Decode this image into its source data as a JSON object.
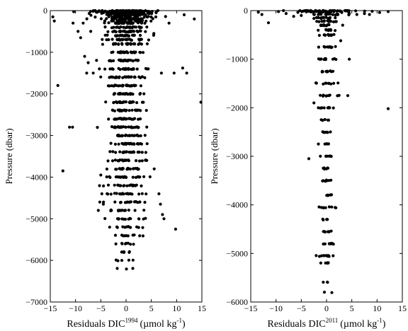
{
  "chart_data": [
    {
      "type": "scatter",
      "xlabel": "Residuals DIC",
      "xlabel_superscript": "1994",
      "xlabel_units": "(µmol kg",
      "xlabel_units_sup": "-1",
      "xlabel_units_close": ")",
      "ylabel": "Pressure (dbar)",
      "xlim": [
        -15,
        15
      ],
      "ylim": [
        -7000,
        0
      ],
      "xticks": [
        -15,
        -10,
        -5,
        0,
        5,
        10,
        15
      ],
      "yticks": [
        0,
        -1000,
        -2000,
        -3000,
        -4000,
        -5000,
        -6000,
        -7000
      ],
      "grid": false,
      "marker_color": "#000000",
      "scatter_generator": {
        "seed": 1994,
        "levels": [
          {
            "p": -10,
            "n": 70,
            "sd": 3.0
          },
          {
            "p": -30,
            "n": 60,
            "sd": 3.0
          },
          {
            "p": -60,
            "n": 50,
            "sd": 3.0
          },
          {
            "p": -100,
            "n": 45,
            "sd": 2.6
          },
          {
            "p": -150,
            "n": 40,
            "sd": 2.5
          },
          {
            "p": -200,
            "n": 35,
            "sd": 2.4
          },
          {
            "p": -250,
            "n": 32,
            "sd": 2.2
          },
          {
            "p": -300,
            "n": 30,
            "sd": 2.0
          },
          {
            "p": -400,
            "n": 30,
            "sd": 2.0
          },
          {
            "p": -500,
            "n": 30,
            "sd": 2.0
          },
          {
            "p": -600,
            "n": 28,
            "sd": 1.9
          },
          {
            "p": -700,
            "n": 28,
            "sd": 1.9
          },
          {
            "p": -800,
            "n": 28,
            "sd": 1.9
          },
          {
            "p": -1000,
            "n": 28,
            "sd": 1.8
          },
          {
            "p": -1200,
            "n": 28,
            "sd": 1.8
          },
          {
            "p": -1400,
            "n": 28,
            "sd": 1.8
          },
          {
            "p": -1600,
            "n": 28,
            "sd": 1.8
          },
          {
            "p": -1800,
            "n": 26,
            "sd": 1.7
          },
          {
            "p": -2000,
            "n": 26,
            "sd": 1.7
          },
          {
            "p": -2200,
            "n": 26,
            "sd": 1.7
          },
          {
            "p": -2400,
            "n": 26,
            "sd": 1.7
          },
          {
            "p": -2600,
            "n": 26,
            "sd": 1.7
          },
          {
            "p": -2800,
            "n": 26,
            "sd": 1.7
          },
          {
            "p": -3000,
            "n": 26,
            "sd": 1.8
          },
          {
            "p": -3200,
            "n": 26,
            "sd": 1.8
          },
          {
            "p": -3400,
            "n": 24,
            "sd": 1.8
          },
          {
            "p": -3600,
            "n": 24,
            "sd": 1.9
          },
          {
            "p": -3800,
            "n": 24,
            "sd": 1.9
          },
          {
            "p": -4000,
            "n": 22,
            "sd": 1.9
          },
          {
            "p": -4200,
            "n": 22,
            "sd": 2.0
          },
          {
            "p": -4400,
            "n": 20,
            "sd": 2.0
          },
          {
            "p": -4600,
            "n": 18,
            "sd": 2.0
          },
          {
            "p": -4800,
            "n": 16,
            "sd": 1.9
          },
          {
            "p": -5000,
            "n": 14,
            "sd": 1.7
          },
          {
            "p": -5200,
            "n": 12,
            "sd": 1.6
          },
          {
            "p": -5400,
            "n": 10,
            "sd": 1.5
          },
          {
            "p": -5600,
            "n": 8,
            "sd": 1.4
          },
          {
            "p": -5800,
            "n": 6,
            "sd": 1.3
          },
          {
            "p": -6000,
            "n": 5,
            "sd": 1.2
          },
          {
            "p": -6200,
            "n": 3,
            "sd": 1.0
          }
        ]
      },
      "outliers": [
        {
          "x": -14.5,
          "y": -150
        },
        {
          "x": -14.2,
          "y": -250
        },
        {
          "x": -13.5,
          "y": -1800
        },
        {
          "x": -12.5,
          "y": -3850
        },
        {
          "x": -11.2,
          "y": -2800
        },
        {
          "x": -10.6,
          "y": -2800
        },
        {
          "x": -10.5,
          "y": -300
        },
        {
          "x": -9.5,
          "y": -500
        },
        {
          "x": -9.0,
          "y": -650
        },
        {
          "x": -8.5,
          "y": -300
        },
        {
          "x": -8.2,
          "y": -1100
        },
        {
          "x": -7.8,
          "y": -1500
        },
        {
          "x": -7.5,
          "y": -1250
        },
        {
          "x": -7.0,
          "y": -500
        },
        {
          "x": -6.5,
          "y": -1500
        },
        {
          "x": -5.5,
          "y": -4800
        },
        {
          "x": -5.2,
          "y": -4600
        },
        {
          "x": -5.0,
          "y": -3950
        },
        {
          "x": -4.8,
          "y": -4400
        },
        {
          "x": -4.5,
          "y": -4650
        },
        {
          "x": 6.5,
          "y": -4400
        },
        {
          "x": 6.8,
          "y": -4650
        },
        {
          "x": 7.2,
          "y": -4900
        },
        {
          "x": 7.5,
          "y": -5000
        },
        {
          "x": 7.0,
          "y": -1500
        },
        {
          "x": 9.5,
          "y": -1500
        },
        {
          "x": 9.8,
          "y": -5250
        },
        {
          "x": 11.2,
          "y": -1380
        },
        {
          "x": 12.0,
          "y": -1500
        },
        {
          "x": 14.8,
          "y": -2200
        },
        {
          "x": 13.5,
          "y": -200
        },
        {
          "x": 11.5,
          "y": -100
        },
        {
          "x": 8.5,
          "y": -300
        },
        {
          "x": 5.5,
          "y": -550
        }
      ]
    },
    {
      "type": "scatter",
      "xlabel": "Residuals DIC",
      "xlabel_superscript": "2011",
      "xlabel_units": "(µmol kg",
      "xlabel_units_sup": "-1",
      "xlabel_units_close": ")",
      "ylabel": "Pressure (dbar)",
      "xlim": [
        -15,
        15
      ],
      "ylim": [
        -6000,
        0
      ],
      "xticks": [
        -15,
        -10,
        -5,
        0,
        5,
        10,
        15
      ],
      "yticks": [
        0,
        -1000,
        -2000,
        -3000,
        -4000,
        -5000,
        -6000
      ],
      "grid": false,
      "marker_color": "#000000",
      "scatter_generator": {
        "seed": 2011,
        "levels": [
          {
            "p": -5,
            "n": 40,
            "sd": 3.5
          },
          {
            "p": -30,
            "n": 25,
            "sd": 2.5
          },
          {
            "p": -80,
            "n": 16,
            "sd": 1.6
          },
          {
            "p": -150,
            "n": 14,
            "sd": 1.4
          },
          {
            "p": -220,
            "n": 12,
            "sd": 1.2
          },
          {
            "p": -300,
            "n": 10,
            "sd": 1.0
          },
          {
            "p": -400,
            "n": 10,
            "sd": 1.0
          },
          {
            "p": -500,
            "n": 10,
            "sd": 1.0
          },
          {
            "p": -750,
            "n": 12,
            "sd": 1.1
          },
          {
            "p": -1000,
            "n": 12,
            "sd": 1.1
          },
          {
            "p": -1250,
            "n": 10,
            "sd": 1.0
          },
          {
            "p": -1500,
            "n": 10,
            "sd": 1.0
          },
          {
            "p": -1750,
            "n": 10,
            "sd": 1.0
          },
          {
            "p": -2000,
            "n": 10,
            "sd": 1.0
          },
          {
            "p": -2250,
            "n": 6,
            "sd": 0.7
          },
          {
            "p": -2500,
            "n": 7,
            "sd": 0.7
          },
          {
            "p": -2750,
            "n": 6,
            "sd": 0.7
          },
          {
            "p": -3000,
            "n": 8,
            "sd": 0.8
          },
          {
            "p": -3250,
            "n": 6,
            "sd": 0.7
          },
          {
            "p": -3500,
            "n": 8,
            "sd": 0.8
          },
          {
            "p": -3800,
            "n": 7,
            "sd": 0.7
          },
          {
            "p": -4050,
            "n": 10,
            "sd": 0.9
          },
          {
            "p": -4300,
            "n": 6,
            "sd": 0.7
          },
          {
            "p": -4550,
            "n": 8,
            "sd": 0.8
          },
          {
            "p": -4800,
            "n": 8,
            "sd": 0.8
          },
          {
            "p": -5050,
            "n": 12,
            "sd": 1.0
          },
          {
            "p": -5200,
            "n": 5,
            "sd": 0.8
          },
          {
            "p": -5600,
            "n": 3,
            "sd": 0.6
          },
          {
            "p": -5800,
            "n": 2,
            "sd": 0.5
          }
        ]
      },
      "outliers": [
        {
          "x": -13.5,
          "y": -30
        },
        {
          "x": -12.8,
          "y": -80
        },
        {
          "x": -11.5,
          "y": -250
        },
        {
          "x": -9.5,
          "y": -20
        },
        {
          "x": -8.0,
          "y": -60
        },
        {
          "x": -6.5,
          "y": -120
        },
        {
          "x": -5.0,
          "y": -100
        },
        {
          "x": 4.5,
          "y": -60
        },
        {
          "x": 6.0,
          "y": -80
        },
        {
          "x": 7.5,
          "y": -60
        },
        {
          "x": 8.5,
          "y": -80
        },
        {
          "x": 10.5,
          "y": -40
        },
        {
          "x": 12.2,
          "y": -20
        },
        {
          "x": 12.2,
          "y": -2020
        },
        {
          "x": 4.5,
          "y": -1000
        },
        {
          "x": 4.2,
          "y": -1750
        },
        {
          "x": -2.5,
          "y": -1900
        },
        {
          "x": -3.5,
          "y": -3050
        },
        {
          "x": 3.2,
          "y": -300
        },
        {
          "x": 2.8,
          "y": -620
        }
      ]
    }
  ]
}
